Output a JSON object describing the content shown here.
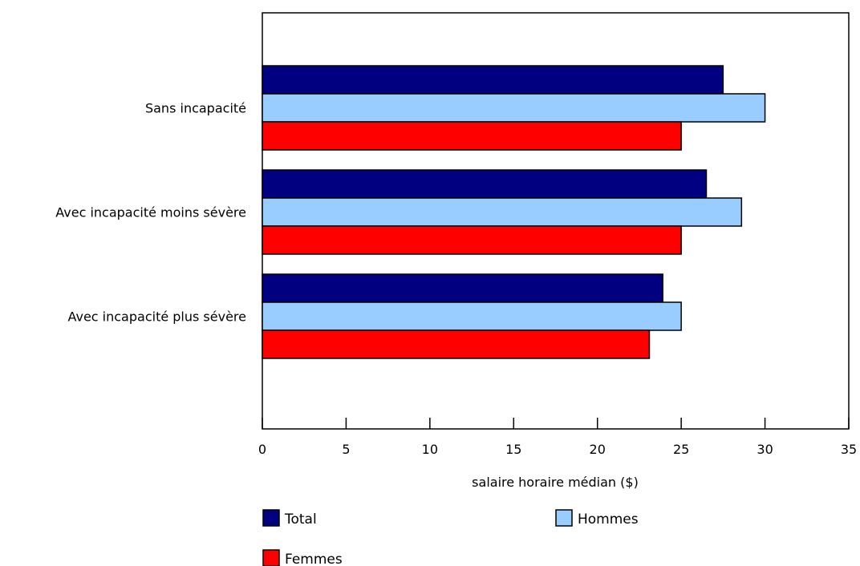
{
  "chart_data": {
    "type": "bar",
    "orientation": "horizontal",
    "categories": [
      "Sans incapacité",
      "Avec incapacité moins sévère",
      "Avec incapacité plus sévère"
    ],
    "series": [
      {
        "name": "Total",
        "color": "#000080",
        "values": [
          27.5,
          26.5,
          23.9
        ]
      },
      {
        "name": "Hommes",
        "color": "#99ccff",
        "values": [
          30.0,
          28.6,
          25.0
        ]
      },
      {
        "name": "Femmes",
        "color": "#ff0000",
        "values": [
          25.0,
          25.0,
          23.1
        ]
      }
    ],
    "xlabel": "salaire horaire médian ($)",
    "xlim": [
      0,
      35
    ],
    "xticks": [
      "0",
      "5",
      "10",
      "15",
      "20",
      "25",
      "30",
      "35"
    ],
    "grid": false,
    "legend_position": "bottom"
  }
}
